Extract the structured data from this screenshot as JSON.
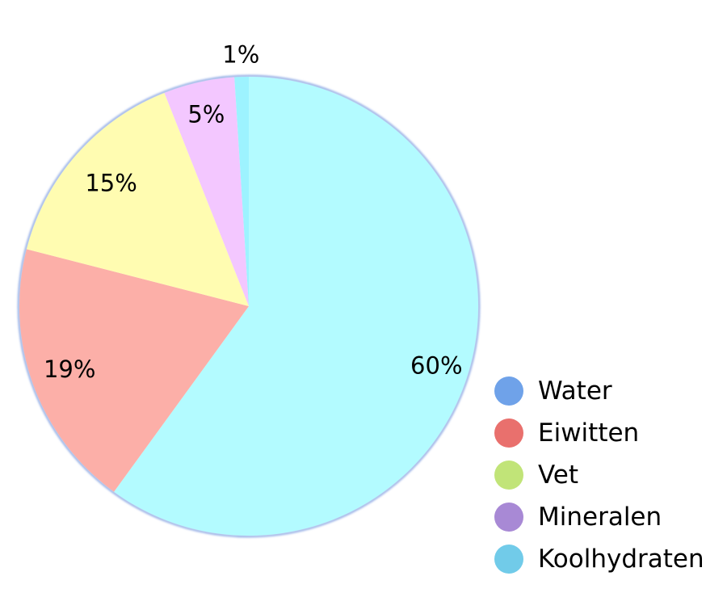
{
  "chart_data": {
    "type": "pie",
    "title": "",
    "categories": [
      "Water",
      "Eiwitten",
      "Vet",
      "Mineralen",
      "Koolhydraten"
    ],
    "values": [
      60,
      19,
      15,
      5,
      1
    ],
    "value_labels": [
      "60%",
      "19%",
      "15%",
      "5%",
      "1%"
    ],
    "start": "12 o'clock",
    "direction": "clockwise",
    "legend_position": "right-bottom",
    "slice_colors": [
      "#b3fbff",
      "#fcafa8",
      "#fffcb1",
      "#f3c7ff",
      "#9df3ff"
    ],
    "legend_colors": [
      "#6fa2e9",
      "#e9706d",
      "#c1e478",
      "#a889d5",
      "#71cbe9"
    ]
  }
}
